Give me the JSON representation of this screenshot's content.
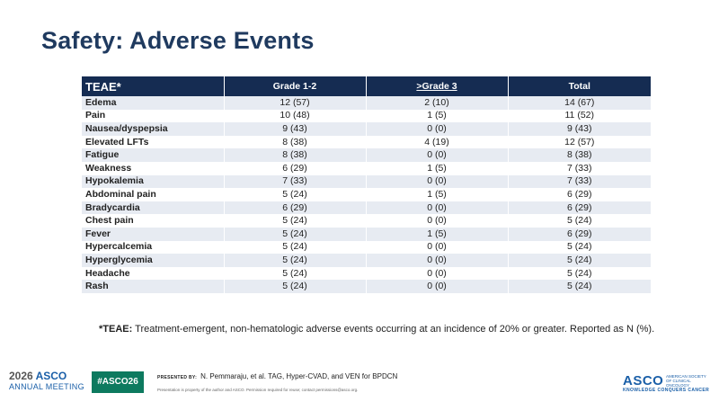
{
  "title": "Safety: Adverse Events",
  "table": {
    "headers": [
      "TEAE*",
      "Grade 1-2",
      ">Grade 3",
      "Total"
    ],
    "rows": [
      [
        "Edema",
        "12 (57)",
        "2 (10)",
        "14 (67)"
      ],
      [
        "Pain",
        "10 (48)",
        "1 (5)",
        "11 (52)"
      ],
      [
        "Nausea/dyspepsia",
        "9 (43)",
        "0 (0)",
        "9 (43)"
      ],
      [
        "Elevated LFTs",
        "8 (38)",
        "4 (19)",
        "12 (57)"
      ],
      [
        "Fatigue",
        "8 (38)",
        "0 (0)",
        "8 (38)"
      ],
      [
        "Weakness",
        "6 (29)",
        "1 (5)",
        "7 (33)"
      ],
      [
        "Hypokalemia",
        "7 (33)",
        "0 (0)",
        "7 (33)"
      ],
      [
        "Abdominal pain",
        "5 (24)",
        "1 (5)",
        "6 (29)"
      ],
      [
        "Bradycardia",
        "6 (29)",
        "0 (0)",
        "6 (29)"
      ],
      [
        "Chest pain",
        "5 (24)",
        "0 (0)",
        "5 (24)"
      ],
      [
        "Fever",
        "5 (24)",
        "1 (5)",
        "6 (29)"
      ],
      [
        "Hypercalcemia",
        "5 (24)",
        "0 (0)",
        "5 (24)"
      ],
      [
        "Hyperglycemia",
        "5 (24)",
        "0 (0)",
        "5 (24)"
      ],
      [
        "Headache",
        "5 (24)",
        "0 (0)",
        "5 (24)"
      ],
      [
        "Rash",
        "5 (24)",
        "0 (0)",
        "5 (24)"
      ]
    ]
  },
  "footnote": {
    "label": "*TEAE:",
    "text": " Treatment-emergent, non-hematologic adverse events occurring at an incidence of 20% or greater. Reported as N (%)."
  },
  "footer": {
    "logo_year": "2026",
    "logo_name": "ASCO",
    "logo_sub": "ANNUAL MEETING",
    "hashtag": "#ASCO26",
    "presented_by_label": "PRESENTED BY:",
    "presented_by": "N. Pemmaraju, et al. TAG, Hyper-CVAD, and VEN for BPDCN",
    "notice": "Presentation is property of the author and ASCO. Permission required for reuse; contact permissions@asco.org.",
    "org_name": "ASCO",
    "org_full": "AMERICAN SOCIETY OF CLINICAL ONCOLOGY",
    "org_tagline": "KNOWLEDGE CONQUERS CANCER"
  },
  "colors": {
    "title": "#1f3a5f",
    "header_bg": "#152c52",
    "row_stripe": "#e7ebf2",
    "hashtag_bg": "#0d7a5f",
    "asco_blue": "#1a5fa8"
  }
}
